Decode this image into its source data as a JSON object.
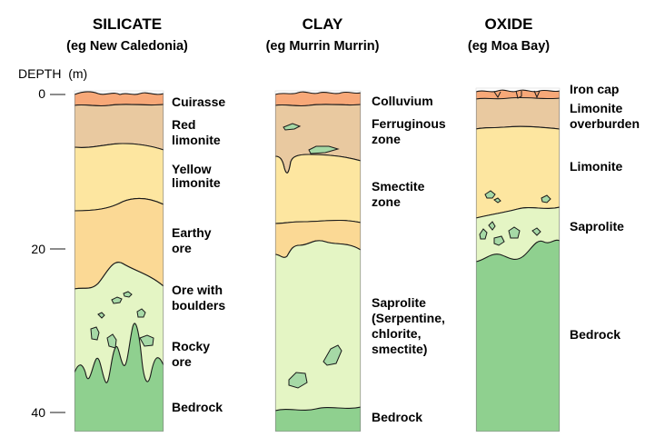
{
  "axis": {
    "label": "DEPTH  (m)",
    "ticks": [
      "0",
      "20",
      "40"
    ]
  },
  "columns": [
    {
      "title": "SILICATE",
      "subtitle": "(eg New Caledonia)",
      "layers": [
        "Cuirasse",
        "Red\nlimonite",
        "Yellow\nlimonite",
        "Earthy\nore",
        "Ore with\nboulders",
        "Rocky\nore",
        "Bedrock"
      ]
    },
    {
      "title": "CLAY",
      "subtitle": "(eg Murrin Murrin)",
      "layers": [
        "Colluvium",
        "Ferruginous\nzone",
        "Smectite\nzone",
        "Saprolite\n(Serpentine,\nchlorite,\nsmectite)",
        "Bedrock"
      ]
    },
    {
      "title": "OXIDE",
      "subtitle": "(eg Moa Bay)",
      "layers": [
        "Iron cap",
        "Limonite\noverburden",
        "Limonite",
        "Saprolite",
        "Bedrock"
      ]
    }
  ],
  "colors": {
    "cap": "#f7a878",
    "limonite_red": "#e9c9a0",
    "limonite_yellow": "#fde6a0",
    "earthy": "#fbd995",
    "saprolite": "#e4f5c4",
    "boulder": "#a6d9a6",
    "bedrock": "#8fd08f",
    "outline": "#1a1a1a"
  }
}
